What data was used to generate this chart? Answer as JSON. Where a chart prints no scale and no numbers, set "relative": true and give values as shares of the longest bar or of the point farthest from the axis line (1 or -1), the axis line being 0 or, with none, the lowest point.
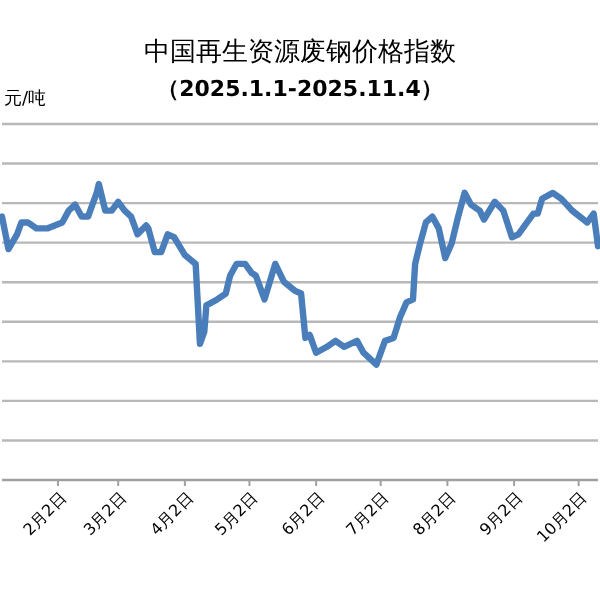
{
  "chart_data": {
    "type": "line",
    "title": "中国再生资源废钢价格指数",
    "subtitle": "（2025.1.1-2025.11.4）",
    "ylabel": "元/吨",
    "relative": true,
    "grid": "y",
    "line_style": "solid",
    "x": [
      "2025-01-07",
      "2025-01-10",
      "2025-01-14",
      "2025-01-16",
      "2025-01-19",
      "2025-01-23",
      "2025-01-28",
      "2025-02-04",
      "2025-02-07",
      "2025-02-10",
      "2025-02-13",
      "2025-02-16",
      "2025-02-20",
      "2025-02-21",
      "2025-02-24",
      "2025-02-27",
      "2025-03-02",
      "2025-03-05",
      "2025-03-08",
      "2025-03-11",
      "2025-03-15",
      "2025-03-16",
      "2025-03-19",
      "2025-03-22",
      "2025-03-25",
      "2025-03-28",
      "2025-04-02",
      "2025-04-07",
      "2025-04-09",
      "2025-04-11",
      "2025-04-12",
      "2025-04-17",
      "2025-04-21",
      "2025-04-23",
      "2025-04-26",
      "2025-04-30",
      "2025-05-03",
      "2025-05-05",
      "2025-05-09",
      "2025-05-14",
      "2025-05-18",
      "2025-05-23",
      "2025-05-26",
      "2025-05-28",
      "2025-05-30",
      "2025-06-02",
      "2025-06-07",
      "2025-06-11",
      "2025-06-15",
      "2025-06-21",
      "2025-06-24",
      "2025-06-27",
      "2025-06-30",
      "2025-07-04",
      "2025-07-08",
      "2025-07-11",
      "2025-07-14",
      "2025-07-17",
      "2025-07-18",
      "2025-07-20",
      "2025-07-23",
      "2025-07-26",
      "2025-07-29",
      "2025-08-01",
      "2025-08-04",
      "2025-08-07",
      "2025-08-10",
      "2025-08-13",
      "2025-08-17",
      "2025-08-19",
      "2025-08-24",
      "2025-08-28",
      "2025-09-01",
      "2025-09-04",
      "2025-09-07",
      "2025-09-11",
      "2025-09-13",
      "2025-09-15",
      "2025-09-20",
      "2025-09-24",
      "2025-09-29",
      "2025-10-06",
      "2025-10-09",
      "2025-10-11"
    ],
    "series": [
      {
        "color": "#4a7ebb",
        "values": [
          0.89,
          0.78,
          0.83,
          0.87,
          0.87,
          0.85,
          0.85,
          0.87,
          0.91,
          0.93,
          0.89,
          0.89,
          0.97,
          1.0,
          0.91,
          0.91,
          0.94,
          0.91,
          0.89,
          0.83,
          0.86,
          0.85,
          0.77,
          0.77,
          0.83,
          0.82,
          0.76,
          0.73,
          0.46,
          0.5,
          0.59,
          0.61,
          0.63,
          0.69,
          0.73,
          0.73,
          0.7,
          0.69,
          0.61,
          0.73,
          0.67,
          0.64,
          0.63,
          0.48,
          0.49,
          0.43,
          0.45,
          0.47,
          0.45,
          0.47,
          0.43,
          0.41,
          0.39,
          0.47,
          0.48,
          0.55,
          0.6,
          0.61,
          0.73,
          0.79,
          0.87,
          0.89,
          0.85,
          0.75,
          0.8,
          0.89,
          0.97,
          0.93,
          0.91,
          0.88,
          0.94,
          0.91,
          0.82,
          0.83,
          0.86,
          0.9,
          0.9,
          0.95,
          0.97,
          0.95,
          0.91,
          0.87,
          0.9,
          0.79
        ]
      }
    ],
    "xlim": [
      "2025-01-07",
      "2025-10-11"
    ],
    "xticks": [
      {
        "value": "2025-02-02",
        "label": "2月2日"
      },
      {
        "value": "2025-03-02",
        "label": "3月2日"
      },
      {
        "value": "2025-04-02",
        "label": "4月2日"
      },
      {
        "value": "2025-05-02",
        "label": "5月2日"
      },
      {
        "value": "2025-06-02",
        "label": "6月2日"
      },
      {
        "value": "2025-07-02",
        "label": "7月2日"
      },
      {
        "value": "2025-08-02",
        "label": "8月2日"
      },
      {
        "value": "2025-09-02",
        "label": "9月2日"
      },
      {
        "value": "2025-10-02",
        "label": "10月2日"
      }
    ]
  }
}
